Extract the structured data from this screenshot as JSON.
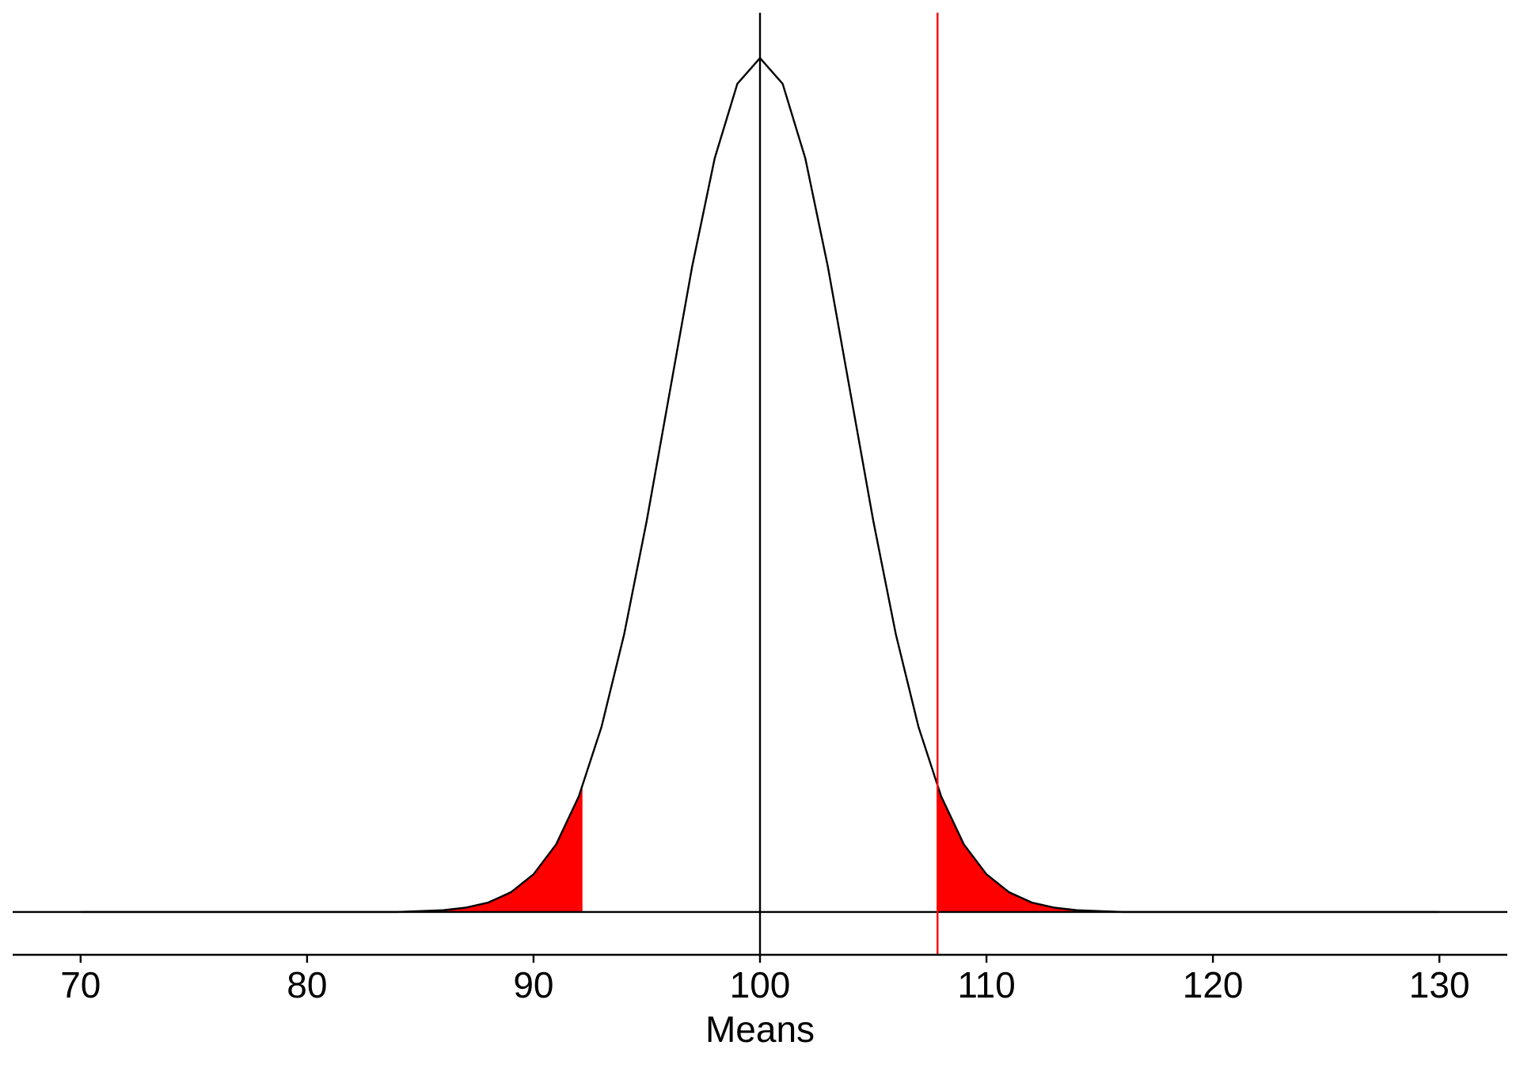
{
  "chart_data": {
    "type": "density",
    "x_label": "Means",
    "x": [
      70,
      71,
      72,
      73,
      74,
      75,
      76,
      77,
      78,
      79,
      80,
      81,
      82,
      83,
      84,
      85,
      86,
      87,
      88,
      89,
      90,
      91,
      92,
      93,
      94,
      95,
      96,
      97,
      98,
      99,
      100,
      101,
      102,
      103,
      104,
      105,
      106,
      107,
      108,
      109,
      110,
      111,
      112,
      113,
      114,
      115,
      116,
      117,
      118,
      119,
      120,
      121,
      122,
      123,
      124,
      125,
      126,
      127,
      128,
      129,
      130
    ],
    "values": [
      0,
      0,
      0,
      0,
      0,
      0,
      0,
      0,
      0,
      0,
      0,
      0,
      0,
      0,
      0,
      0.0001,
      0.0002,
      0.0005,
      0.0011,
      0.0023,
      0.0044,
      0.0079,
      0.0135,
      0.0216,
      0.0324,
      0.0457,
      0.0605,
      0.0753,
      0.088,
      0.0967,
      0.0997,
      0.0967,
      0.088,
      0.0753,
      0.0605,
      0.0457,
      0.0324,
      0.0216,
      0.0135,
      0.0079,
      0.0044,
      0.0023,
      0.0011,
      0.0005,
      0.0002,
      0.0001,
      0,
      0,
      0,
      0,
      0,
      0,
      0,
      0,
      0,
      0,
      0,
      0,
      0,
      0,
      0
    ],
    "color": "#000000",
    "shaded": {
      "color": "#ff0000",
      "lower": 92.16,
      "upper": 107.84
    },
    "vlines": [
      {
        "x": 100,
        "color": "#000000"
      },
      {
        "x": 107.84,
        "color": "#ff0000"
      }
    ],
    "xlim": [
      67,
      133
    ],
    "ylim": [
      -0.005,
      0.105
    ],
    "xticks": [
      70,
      80,
      90,
      100,
      110,
      120,
      130
    ]
  }
}
